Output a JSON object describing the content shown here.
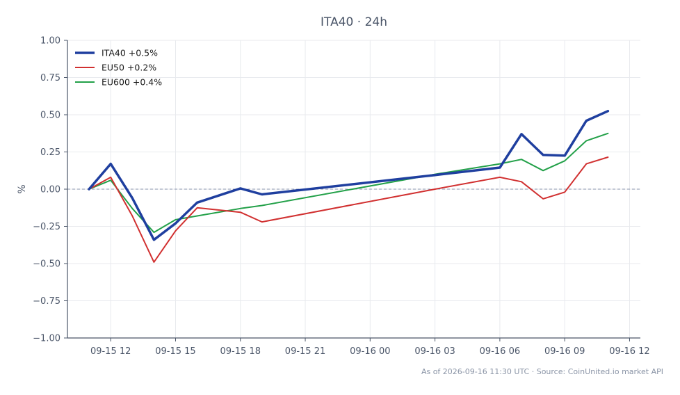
{
  "chart_data": {
    "type": "line",
    "title": "ITA40 · 24h",
    "xlabel": "",
    "ylabel": "%",
    "ylim": [
      -1.0,
      1.0
    ],
    "yticks": [
      -1.0,
      -0.75,
      -0.5,
      -0.25,
      0.0,
      0.25,
      0.5,
      0.75,
      1.0
    ],
    "ytick_labels": [
      "−1.00",
      "−0.75",
      "−0.50",
      "−0.25",
      "0.00",
      "0.25",
      "0.50",
      "0.75",
      "1.00"
    ],
    "xlim": [
      "2026-09-15 10:00",
      "2026-09-16 12:30"
    ],
    "xticks": [
      "2026-09-15 12:00",
      "2026-09-15 15:00",
      "2026-09-15 18:00",
      "2026-09-15 21:00",
      "2026-09-16 00:00",
      "2026-09-16 03:00",
      "2026-09-16 06:00",
      "2026-09-16 09:00",
      "2026-09-16 12:00"
    ],
    "xtick_labels": [
      "09-15 12",
      "09-15 15",
      "09-15 18",
      "09-15 21",
      "09-16 00",
      "09-16 03",
      "09-16 06",
      "09-16 09",
      "09-16 12"
    ],
    "grid": true,
    "legend_position": "top-left",
    "zero_line": true,
    "x": [
      "2026-09-15 11:00",
      "2026-09-15 12:00",
      "2026-09-15 13:00",
      "2026-09-15 14:00",
      "2026-09-15 15:00",
      "2026-09-15 16:00",
      "2026-09-15 18:00",
      "2026-09-15 19:00",
      "2026-09-16 03:00",
      "2026-09-16 06:00",
      "2026-09-16 07:00",
      "2026-09-16 08:00",
      "2026-09-16 09:00",
      "2026-09-16 10:00",
      "2026-09-16 11:00"
    ],
    "series": [
      {
        "name": "ITA40 +0.5%",
        "color": "#1f3f9f",
        "width": 3.5,
        "values": [
          0.0,
          0.17,
          -0.06,
          -0.34,
          -0.23,
          -0.09,
          0.005,
          -0.035,
          0.095,
          0.145,
          0.37,
          0.23,
          0.225,
          0.46,
          0.525
        ]
      },
      {
        "name": "EU50 +0.2%",
        "color": "#d13030",
        "width": 2,
        "values": [
          0.0,
          0.08,
          -0.18,
          -0.49,
          -0.28,
          -0.125,
          -0.155,
          -0.22,
          0.0,
          0.08,
          0.05,
          -0.065,
          -0.02,
          0.17,
          0.215
        ]
      },
      {
        "name": "EU600 +0.4%",
        "color": "#22a048",
        "width": 2,
        "values": [
          0.0,
          0.06,
          -0.13,
          -0.29,
          -0.205,
          -0.18,
          -0.13,
          -0.11,
          0.1,
          0.17,
          0.2,
          0.125,
          0.19,
          0.325,
          0.375
        ]
      }
    ]
  },
  "footer_text": "As of 2026-09-16 11:30 UTC · Source: CoinUnited.io market API",
  "colors": {
    "title": "#4a5568",
    "axis_text": "#4a5568",
    "grid": "#e8eaee",
    "spine": "#4a5568",
    "zero_line": "#8a94ad",
    "footer": "#8a94a6"
  }
}
